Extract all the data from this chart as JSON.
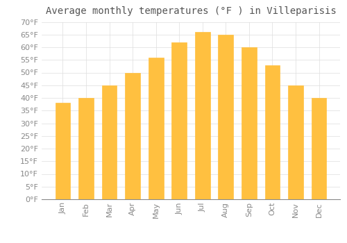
{
  "title": "Average monthly temperatures (°F ) in Villeparisis",
  "months": [
    "Jan",
    "Feb",
    "Mar",
    "Apr",
    "May",
    "Jun",
    "Jul",
    "Aug",
    "Sep",
    "Oct",
    "Nov",
    "Dec"
  ],
  "values": [
    38,
    40,
    45,
    50,
    56,
    62,
    66,
    65,
    60,
    53,
    45,
    40
  ],
  "bar_color_top": "#FFA500",
  "bar_color_bottom": "#FFD070",
  "bar_edge_color": "#E89000",
  "ylim": [
    0,
    70
  ],
  "yticks": [
    0,
    5,
    10,
    15,
    20,
    25,
    30,
    35,
    40,
    45,
    50,
    55,
    60,
    65,
    70
  ],
  "ytick_labels": [
    "0°F",
    "5°F",
    "10°F",
    "15°F",
    "20°F",
    "25°F",
    "30°F",
    "35°F",
    "40°F",
    "45°F",
    "50°F",
    "55°F",
    "60°F",
    "65°F",
    "70°F"
  ],
  "background_color": "#FFFFFF",
  "grid_color": "#DDDDDD",
  "title_fontsize": 10,
  "tick_fontsize": 8,
  "bar_width": 0.65
}
